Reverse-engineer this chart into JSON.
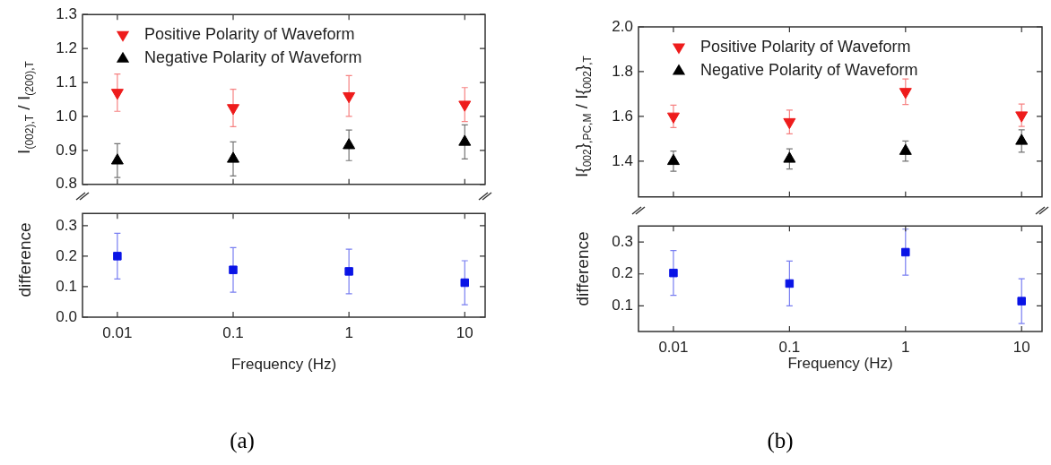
{
  "chart_data": [
    {
      "type": "scatter",
      "ylabel": "I$_{(002),T}$ / I$_{(200),T}$",
      "x": [
        0.01,
        0.1,
        1,
        10
      ],
      "xlim": [
        0.005,
        15
      ],
      "xticks": [
        0.01,
        0.1,
        1,
        10
      ],
      "ylim": [
        0.8,
        1.3
      ],
      "yticks": [
        0.8,
        0.9,
        {
          "value": 1,
          "label": "1.0"
        },
        1.1,
        1.2,
        1.3
      ],
      "log": "x",
      "legend": "top left",
      "tick_labels": "y",
      "series": [
        {
          "name": "Positive Polarity of Waveform",
          "color": "#ee1c1c",
          "marker": "triangle-down",
          "values": [
            1.07,
            1.025,
            1.06,
            1.035
          ],
          "errors": [
            0.055,
            0.055,
            0.06,
            0.05
          ]
        },
        {
          "name": "Negative Polarity of Waveform",
          "color": "#000000",
          "marker": "triangle",
          "values": [
            0.87,
            0.875,
            0.915,
            0.925
          ],
          "errors": [
            0.05,
            0.05,
            0.045,
            0.05
          ]
        }
      ]
    },
    {
      "type": "scatter",
      "ylabel": "difference",
      "xlabel": "Frequency (Hz)",
      "x": [
        0.01,
        0.1,
        1,
        10
      ],
      "xlim": [
        0.005,
        15
      ],
      "xticks": [
        0.01,
        0.1,
        1,
        10
      ],
      "ylim": [
        0,
        0.34
      ],
      "yticks": [
        {
          "value": 0,
          "label": "0.0"
        },
        0.1,
        0.2,
        0.3
      ],
      "log": "x",
      "marker": "square",
      "annotations": [
        "(a)"
      ],
      "series": [
        {
          "color": "#0a14e6",
          "values": [
            0.2,
            0.155,
            0.15,
            0.113
          ],
          "errors": [
            0.075,
            0.073,
            0.073,
            0.072
          ]
        }
      ]
    },
    {
      "type": "scatter",
      "ylabel": "I{$_{002}$}$_{,PC,M}$ / I{$_{002}$}$_{,T}$",
      "x": [
        0.01,
        0.1,
        1,
        10
      ],
      "xlim": [
        0.005,
        15
      ],
      "xticks": [
        0.01,
        0.1,
        1,
        10
      ],
      "ylim": [
        1.24,
        2.0
      ],
      "yticks": [
        1.4,
        1.6,
        1.8,
        {
          "value": 2,
          "label": "2.0"
        }
      ],
      "log": "x",
      "legend": "top left",
      "tick_labels": "y",
      "series": [
        {
          "name": "Positive Polarity of Waveform",
          "color": "#ee1c1c",
          "marker": "triangle-down",
          "values": [
            1.6,
            1.575,
            1.71,
            1.605
          ],
          "errors": [
            0.05,
            0.053,
            0.057,
            0.05
          ]
        },
        {
          "name": "Negative Polarity of Waveform",
          "color": "#000000",
          "marker": "triangle",
          "values": [
            1.4,
            1.41,
            1.445,
            1.49
          ],
          "errors": [
            0.045,
            0.045,
            0.045,
            0.05
          ]
        }
      ]
    },
    {
      "type": "scatter",
      "ylabel": "difference",
      "xlabel": "Frequency (Hz)",
      "x": [
        0.01,
        0.1,
        1,
        10
      ],
      "xlim": [
        0.005,
        15
      ],
      "xticks": [
        0.01,
        0.1,
        1,
        10
      ],
      "ylim": [
        0.02,
        0.35
      ],
      "yticks": [
        0.1,
        0.2,
        0.3
      ],
      "log": "x",
      "marker": "square",
      "annotations": [
        "(b)"
      ],
      "series": [
        {
          "color": "#0a14e6",
          "values": [
            0.203,
            0.17,
            0.268,
            0.115
          ],
          "errors": [
            0.07,
            0.07,
            0.072,
            0.07
          ]
        }
      ]
    }
  ]
}
